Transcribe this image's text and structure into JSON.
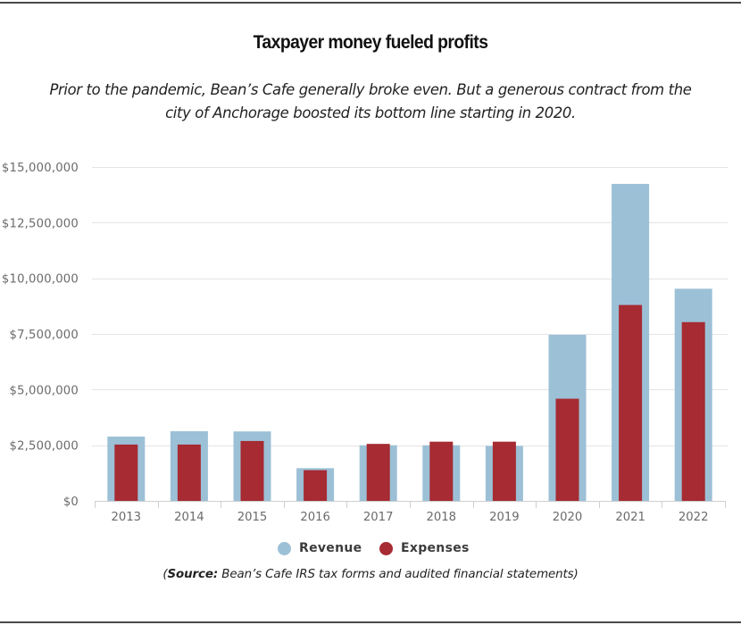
{
  "chart_data": {
    "type": "bar",
    "title": "Taxpayer money fueled profits",
    "subtitle_lines": [
      "Prior to the pandemic, Bean’s Cafe generally broke even. But a generous contract from the",
      "city of Anchorage boosted its bottom line starting in 2020."
    ],
    "categories": [
      "2013",
      "2014",
      "2015",
      "2016",
      "2017",
      "2018",
      "2019",
      "2020",
      "2021",
      "2022"
    ],
    "series": [
      {
        "name": "Revenue",
        "color": "#9cc0d6",
        "values": [
          2890000,
          3130000,
          3120000,
          1470000,
          2500000,
          2500000,
          2470000,
          7460000,
          14240000,
          9530000
        ]
      },
      {
        "name": "Expenses",
        "color": "#a62b32",
        "values": [
          2530000,
          2530000,
          2690000,
          1380000,
          2560000,
          2660000,
          2660000,
          4590000,
          8800000,
          8030000
        ]
      }
    ],
    "xlabel": "",
    "ylabel": "",
    "ylim": [
      0,
      15000000
    ],
    "yticks": [
      0,
      2500000,
      5000000,
      7500000,
      10000000,
      12500000,
      15000000
    ],
    "ytick_labels": [
      "$0",
      "$2,500,000",
      "$5,000,000",
      "$7,500,000",
      "$10,000,000",
      "$12,500,000",
      "$15,000,000"
    ],
    "grid": true,
    "legend_position": "bottom-center",
    "bar_style": "overlapping (expenses drawn narrower, in front of revenue)"
  },
  "source": {
    "prefix": "(",
    "label": "Source:",
    "text": " Bean’s Cafe IRS tax forms and audited financial statements)"
  },
  "colors": {
    "rule": "#4a4a4a",
    "grid": "#e4e4e4",
    "axis": "#cfcfcf",
    "tick_text": "#6b6b6b"
  }
}
